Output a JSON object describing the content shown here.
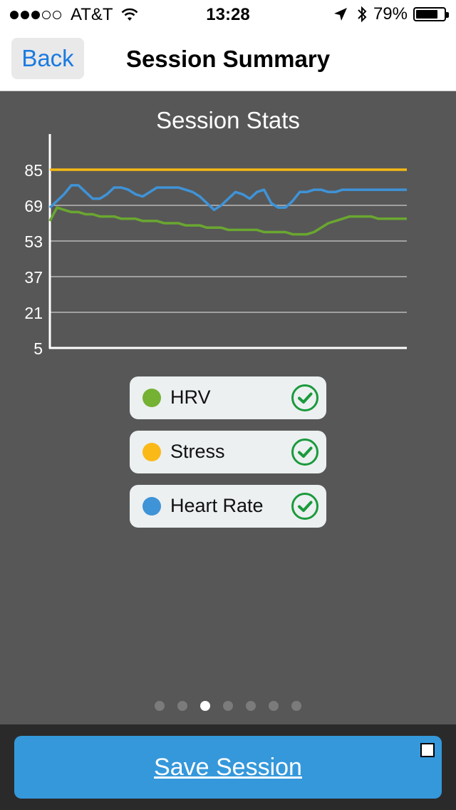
{
  "status_bar": {
    "carrier": "AT&T",
    "time": "13:28",
    "battery": "79%",
    "battery_level": 0.79,
    "signal_bars_filled": 3,
    "signal_bars_total": 5
  },
  "nav": {
    "back_label": "Back",
    "title": "Session Summary"
  },
  "chart_data": {
    "type": "line",
    "title": "Session Stats",
    "xlabel": "",
    "ylabel": "",
    "ylim": [
      5,
      85
    ],
    "yticks": [
      "85",
      "69",
      "53",
      "37",
      "21",
      "5"
    ],
    "ytick_values": [
      85,
      69,
      53,
      37,
      21,
      5
    ],
    "grid": true,
    "x": [
      0,
      1,
      2,
      3,
      4,
      5,
      6,
      7,
      8,
      9,
      10,
      11,
      12,
      13,
      14,
      15,
      16,
      17,
      18,
      19,
      20,
      21,
      22,
      23,
      24,
      25,
      26,
      27,
      28,
      29,
      30,
      31,
      32,
      33,
      34,
      35,
      36,
      37,
      38,
      39,
      40,
      41,
      42,
      43,
      44,
      45,
      46,
      47,
      48,
      49,
      50
    ],
    "series": [
      {
        "name": "Stress",
        "color": "#f4b915",
        "values": [
          85,
          85,
          85,
          85,
          85,
          85,
          85,
          85,
          85,
          85,
          85,
          85,
          85,
          85,
          85,
          85,
          85,
          85,
          85,
          85,
          85,
          85,
          85,
          85,
          85,
          85,
          85,
          85,
          85,
          85,
          85,
          85,
          85,
          85,
          85,
          85,
          85,
          85,
          85,
          85,
          85,
          85,
          85,
          85,
          85,
          85,
          85,
          85,
          85,
          85,
          85
        ]
      },
      {
        "name": "Heart Rate",
        "color": "#3f93d7",
        "values": [
          68,
          71,
          74,
          78,
          78,
          75,
          72,
          72,
          74,
          77,
          77,
          76,
          74,
          73,
          75,
          77,
          77,
          77,
          77,
          76,
          75,
          73,
          70,
          67,
          69,
          72,
          75,
          74,
          72,
          75,
          76,
          70,
          68,
          68,
          71,
          75,
          75,
          76,
          76,
          75,
          75,
          76,
          76,
          76,
          76,
          76,
          76,
          76,
          76,
          76,
          76
        ]
      },
      {
        "name": "HRV",
        "color": "#6aa730",
        "values": [
          62,
          68,
          67,
          66,
          66,
          65,
          65,
          64,
          64,
          64,
          63,
          63,
          63,
          62,
          62,
          62,
          61,
          61,
          61,
          60,
          60,
          60,
          59,
          59,
          59,
          58,
          58,
          58,
          58,
          58,
          57,
          57,
          57,
          57,
          56,
          56,
          56,
          57,
          59,
          61,
          62,
          63,
          64,
          64,
          64,
          64,
          63,
          63,
          63,
          63,
          63
        ]
      }
    ]
  },
  "legend": [
    {
      "name": "HRV",
      "color": "#75b132",
      "checked": true
    },
    {
      "name": "Stress",
      "color": "#fbb917",
      "checked": true
    },
    {
      "name": "Heart Rate",
      "color": "#3f93d7",
      "checked": true
    }
  ],
  "pager": {
    "count": 7,
    "active_index": 2
  },
  "footer": {
    "save_label": "Save Session",
    "checkbox_checked": false
  },
  "colors": {
    "check": "#1a9a3c",
    "background": "#575757",
    "accent": "#3598db"
  }
}
